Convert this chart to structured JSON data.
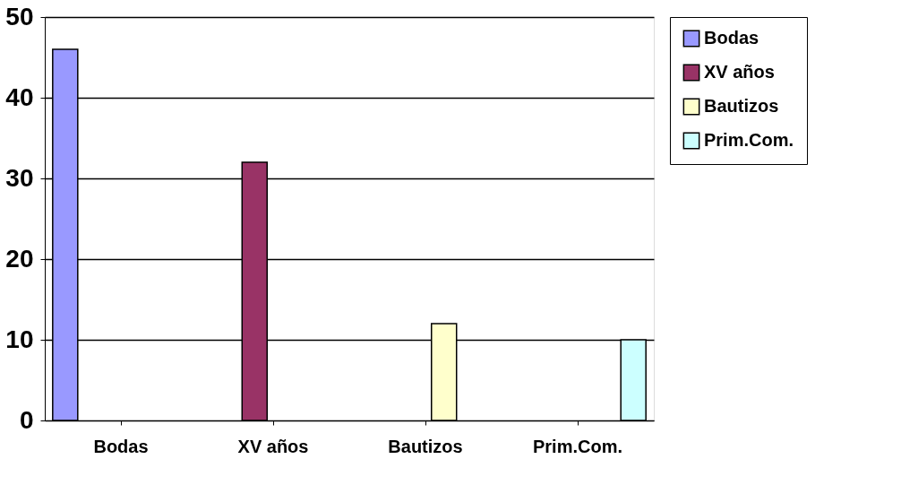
{
  "chart_data": {
    "type": "bar",
    "categories": [
      "Bodas",
      "XV años",
      "Bautizos",
      "Prim.Com."
    ],
    "series": [
      {
        "name": "Bodas",
        "color": "#9999ff",
        "values": [
          46,
          null,
          null,
          null
        ]
      },
      {
        "name": "XV años",
        "color": "#993366",
        "values": [
          null,
          32,
          null,
          null
        ]
      },
      {
        "name": "Bautizos",
        "color": "#ffffcc",
        "values": [
          null,
          null,
          12,
          null
        ]
      },
      {
        "name": "Prim.Com.",
        "color": "#ccffff",
        "values": [
          null,
          null,
          null,
          10
        ]
      }
    ],
    "ylim": [
      0,
      50
    ],
    "yticks": [
      0,
      10,
      20,
      30,
      40,
      50
    ],
    "grid": "y",
    "legend": "right"
  }
}
